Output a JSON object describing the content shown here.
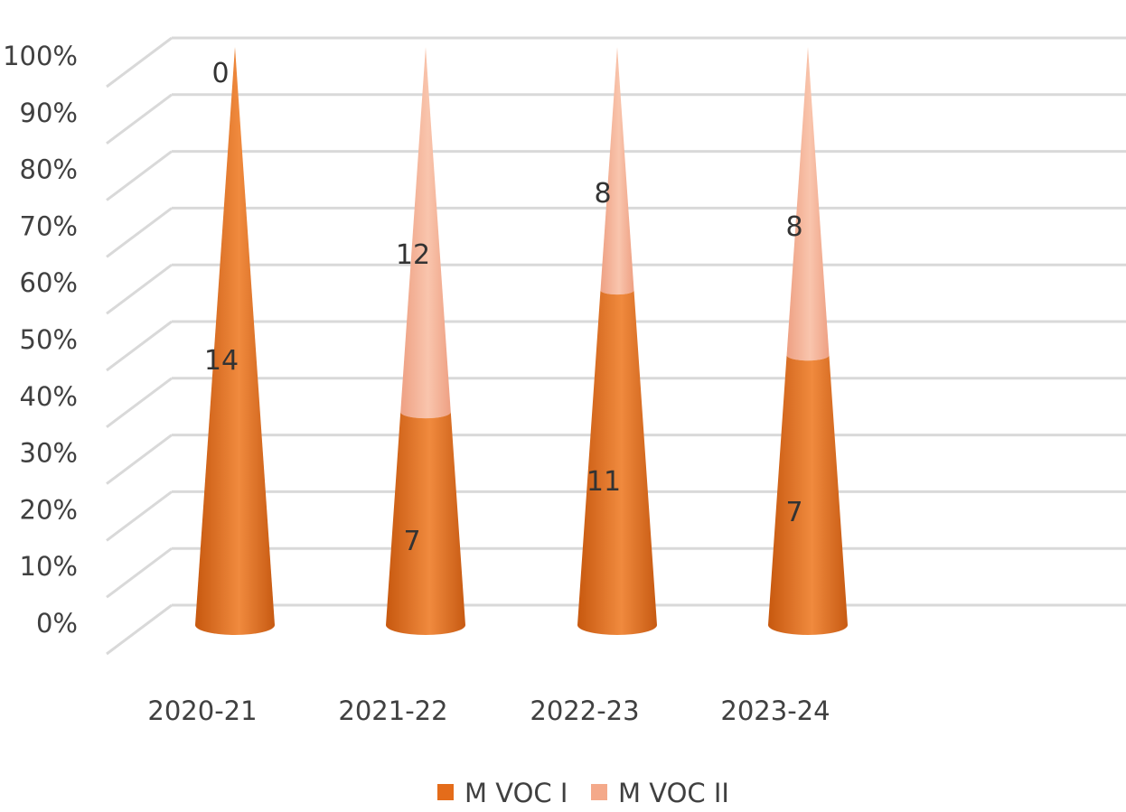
{
  "chart_data": {
    "type": "bar",
    "subtype": "100% stacked 3D cone",
    "categories": [
      "2020-21",
      "2021-22",
      "2022-23",
      "2023-24"
    ],
    "series": [
      {
        "name": "M VOC I",
        "values": [
          14,
          7,
          11,
          7
        ],
        "color": "#e46c1a",
        "color_light": "#f08a3e"
      },
      {
        "name": "M VOC II",
        "values": [
          0,
          12,
          8,
          8
        ],
        "color": "#f4a98a",
        "color_light": "#f8c2aa"
      }
    ],
    "y_ticks": [
      "0%",
      "10%",
      "20%",
      "30%",
      "40%",
      "50%",
      "60%",
      "70%",
      "80%",
      "90%",
      "100%"
    ],
    "ylim": [
      0,
      100
    ],
    "grid": true,
    "legend_position": "bottom",
    "colors": {
      "gridline": "#d9d9d9",
      "text": "#404040"
    }
  }
}
